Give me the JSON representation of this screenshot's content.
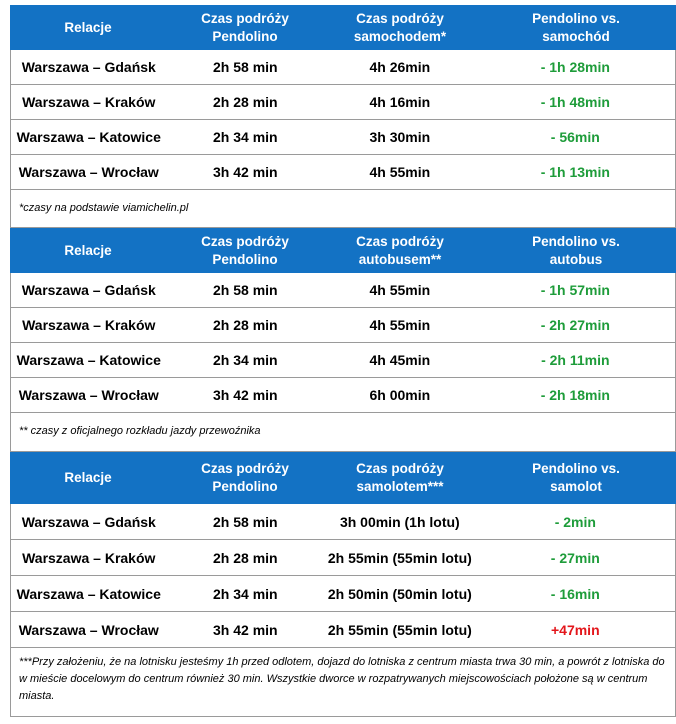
{
  "sections": [
    {
      "headers": [
        "Relacje",
        "Czas podróży Pendolino",
        "Czas podróży samochodem*",
        "Pendolino vs. samochód"
      ],
      "rows": [
        {
          "route": "Warszawa – Gdańsk",
          "pendolino": "2h 58 min",
          "other": "4h 26min",
          "diff": "- 1h 28min",
          "diff_type": "neg"
        },
        {
          "route": "Warszawa – Kraków",
          "pendolino": "2h 28 min",
          "other": "4h 16min",
          "diff": "- 1h 48min",
          "diff_type": "neg"
        },
        {
          "route": "Warszawa – Katowice",
          "pendolino": "2h 34 min",
          "other": "3h 30min",
          "diff": "- 56min",
          "diff_type": "neg"
        },
        {
          "route": "Warszawa – Wrocław",
          "pendolino": "3h 42 min",
          "other": "4h 55min",
          "diff": "- 1h 13min",
          "diff_type": "neg"
        }
      ],
      "note": "*czasy na podstawie viamichelin.pl"
    },
    {
      "headers": [
        "Relacje",
        "Czas podróży Pendolino",
        "Czas podróży autobusem**",
        "Pendolino vs. autobus"
      ],
      "rows": [
        {
          "route": "Warszawa – Gdańsk",
          "pendolino": "2h 58 min",
          "other": "4h 55min",
          "diff": "- 1h 57min",
          "diff_type": "neg"
        },
        {
          "route": "Warszawa – Kraków",
          "pendolino": "2h 28 min",
          "other": "4h 55min",
          "diff": "- 2h 27min",
          "diff_type": "neg"
        },
        {
          "route": "Warszawa – Katowice",
          "pendolino": "2h 34 min",
          "other": "4h 45min",
          "diff": "- 2h 11min",
          "diff_type": "neg"
        },
        {
          "route": "Warszawa – Wrocław",
          "pendolino": "3h 42 min",
          "other": "6h 00min",
          "diff": "- 2h 18min",
          "diff_type": "neg"
        }
      ],
      "note": "** czasy z oficjalnego rozkładu jazdy przewoźnika"
    },
    {
      "headers": [
        "Relacje",
        "Czas podróży Pendolino",
        "Czas podróży samolotem***",
        "Pendolino vs. samolot"
      ],
      "rows": [
        {
          "route": "Warszawa – Gdańsk",
          "pendolino": "2h 58 min",
          "other": "3h 00min (1h lotu)",
          "diff": "- 2min",
          "diff_type": "neg"
        },
        {
          "route": "Warszawa – Kraków",
          "pendolino": "2h 28 min",
          "other": "2h 55min (55min lotu)",
          "diff": "- 27min",
          "diff_type": "neg"
        },
        {
          "route": "Warszawa – Katowice",
          "pendolino": "2h 34 min",
          "other": "2h 50min (50min lotu)",
          "diff": "- 16min",
          "diff_type": "neg"
        },
        {
          "route": "Warszawa – Wrocław",
          "pendolino": "3h 42 min",
          "other": "2h 55min (55min lotu)",
          "diff": "+47min",
          "diff_type": "pos"
        }
      ],
      "note": "***Przy założeniu, że na lotnisku jesteśmy 1h przed odlotem, dojazd do lotniska z centrum miasta trwa 30 min, a powrót z lotniska do w mieście docelowym do centrum również 30 min. Wszystkie dworce w rozpatrywanych miejscowościach położone są w centrum miasta."
    }
  ],
  "colors": {
    "header_bg": "#1372c4",
    "negative": "#1e9c3a",
    "positive": "#e3161b"
  }
}
